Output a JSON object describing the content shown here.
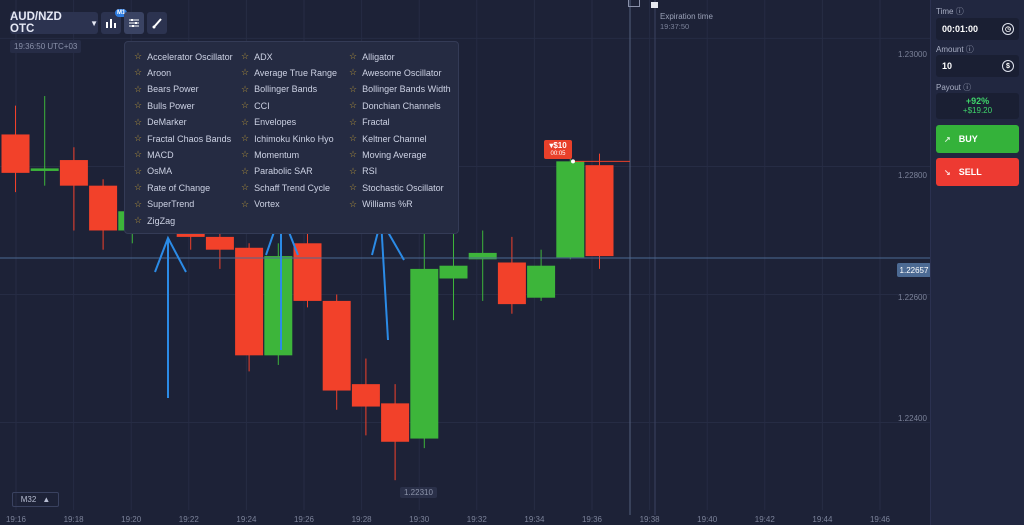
{
  "toolbar": {
    "pair": "AUD/NZD OTC",
    "timeframe_badge": "M1",
    "clock": "19:36:50 UTC+03",
    "timeframe_button": "M32"
  },
  "indicators_menu": {
    "items": [
      "Accelerator Oscillator",
      "ADX",
      "Alligator",
      "Aroon",
      "Average True Range",
      "Awesome Oscillator",
      "Bears Power",
      "Bollinger Bands",
      "Bollinger Bands Width",
      "Bulls Power",
      "CCI",
      "Donchian Channels",
      "DeMarker",
      "Envelopes",
      "Fractal",
      "Fractal Chaos Bands",
      "Ichimoku Kinko Hyo",
      "Keltner Channel",
      "MACD",
      "Momentum",
      "Moving Average",
      "OsMA",
      "Parabolic SAR",
      "RSI",
      "Rate of Change",
      "Schaff Trend Cycle",
      "Stochastic Oscillator",
      "SuperTrend",
      "Vortex",
      "Williams %R",
      "ZigZag"
    ]
  },
  "chart": {
    "current_price": "1.22657",
    "low_price": "1.22310",
    "price_ticks": [
      "1.23000",
      "1.22800",
      "1.22600",
      "1.22400"
    ],
    "time_ticks": [
      "19:16",
      "19:18",
      "19:20",
      "19:22",
      "19:24",
      "19:26",
      "19:28",
      "19:30",
      "19:32",
      "19:34",
      "19:36",
      "19:38",
      "19:40",
      "19:42",
      "19:44",
      "19:46"
    ],
    "trade_marker": {
      "amount": "▾$10",
      "countdown": "00:05"
    },
    "expiration_label": "Expiration time",
    "expiration_time": "19:37:50",
    "colors": {
      "up": "#3db53a",
      "down": "#f2412a",
      "price_line": "#4c6a93"
    }
  },
  "chart_data": {
    "type": "candlestick",
    "candles": [
      {
        "open": 1.2285,
        "close": 1.2279,
        "high": 1.22895,
        "low": 1.2276,
        "dir": "down"
      },
      {
        "open": 1.22793,
        "close": 1.22797,
        "high": 1.2291,
        "low": 1.2277,
        "dir": "up"
      },
      {
        "open": 1.2281,
        "close": 1.2277,
        "high": 1.2283,
        "low": 1.227,
        "dir": "down"
      },
      {
        "open": 1.2277,
        "close": 1.227,
        "high": 1.2278,
        "low": 1.2267,
        "dir": "down"
      },
      {
        "open": 1.227,
        "close": 1.2273,
        "high": 1.2274,
        "low": 1.2268,
        "dir": "up"
      },
      {
        "open": 1.2273,
        "close": 1.2272,
        "high": 1.2275,
        "low": 1.227,
        "dir": "down"
      },
      {
        "open": 1.2273,
        "close": 1.2269,
        "high": 1.22745,
        "low": 1.2267,
        "dir": "down"
      },
      {
        "open": 1.2269,
        "close": 1.2267,
        "high": 1.227,
        "low": 1.2264,
        "dir": "down"
      },
      {
        "open": 1.22673,
        "close": 1.22505,
        "high": 1.2268,
        "low": 1.2248,
        "dir": "down"
      },
      {
        "open": 1.22505,
        "close": 1.2266,
        "high": 1.2268,
        "low": 1.2249,
        "dir": "up"
      },
      {
        "open": 1.2268,
        "close": 1.2259,
        "high": 1.227,
        "low": 1.2258,
        "dir": "down"
      },
      {
        "open": 1.2259,
        "close": 1.2245,
        "high": 1.226,
        "low": 1.2242,
        "dir": "down"
      },
      {
        "open": 1.2246,
        "close": 1.22425,
        "high": 1.225,
        "low": 1.2238,
        "dir": "down"
      },
      {
        "open": 1.2243,
        "close": 1.2237,
        "high": 1.2246,
        "low": 1.2231,
        "dir": "down"
      },
      {
        "open": 1.22375,
        "close": 1.2264,
        "high": 1.227,
        "low": 1.2236,
        "dir": "up"
      },
      {
        "open": 1.22625,
        "close": 1.22645,
        "high": 1.2271,
        "low": 1.2256,
        "dir": "up"
      },
      {
        "open": 1.22655,
        "close": 1.22665,
        "high": 1.227,
        "low": 1.2259,
        "dir": "up"
      },
      {
        "open": 1.2265,
        "close": 1.22585,
        "high": 1.2269,
        "low": 1.2257,
        "dir": "down"
      },
      {
        "open": 1.22595,
        "close": 1.22645,
        "high": 1.2267,
        "low": 1.2259,
        "dir": "up"
      },
      {
        "open": 1.22658,
        "close": 1.22808,
        "high": 1.2284,
        "low": 1.22655,
        "dir": "up"
      },
      {
        "open": 1.22802,
        "close": 1.2266,
        "high": 1.2282,
        "low": 1.2264,
        "dir": "down"
      }
    ],
    "ylim": [
      1.2224,
      1.2306
    ],
    "current_price": 1.22657
  },
  "sidebar": {
    "time_label": "Time ⓘ",
    "time_value": "00:01:00",
    "amount_label": "Amount ⓘ",
    "amount_value": "10",
    "payout_label": "Payout ⓘ",
    "payout_percent": "+92%",
    "payout_amount": "+$19.20",
    "buy_label": "BUY",
    "sell_label": "SELL"
  }
}
